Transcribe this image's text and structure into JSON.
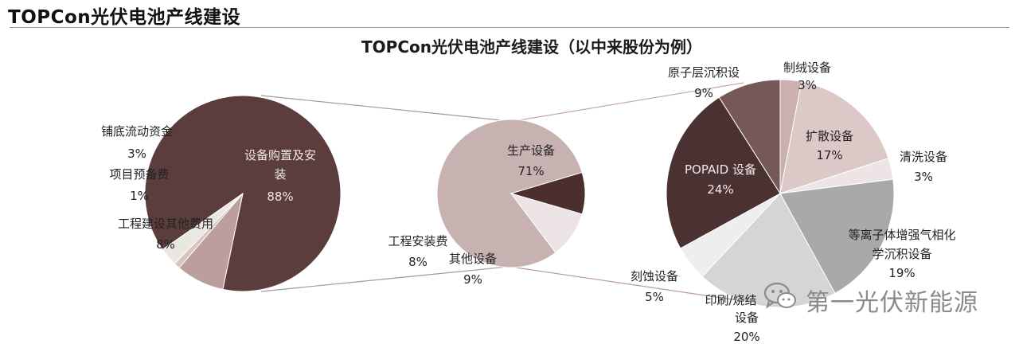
{
  "page_title": "TOPCon光伏电池产线建设",
  "watermark": "第一光伏新能源",
  "chart_data": [
    {
      "type": "pie",
      "role": "total-investment",
      "title": "TOPCon光伏电池产线建设（以中来股份为例）",
      "slices": [
        {
          "label": "设备购置及安装",
          "value": 88,
          "value_label": "88%",
          "color": "#5c3d3d"
        },
        {
          "label": "工程建设其他费用",
          "value": 8,
          "value_label": "8%",
          "color": "#bd9e9e"
        },
        {
          "label": "项目预备费",
          "value": 1,
          "value_label": "1%",
          "color": "#d9c3c3"
        },
        {
          "label": "铺底流动资金",
          "value": 3,
          "value_label": "3%",
          "color": "#eae7e1"
        }
      ]
    },
    {
      "type": "pie",
      "role": "equipment-breakdown",
      "slices": [
        {
          "label": "生产设备",
          "value": 71,
          "value_label": "71%",
          "color": "#c7b1b1"
        },
        {
          "label": "工程安装费",
          "value": 8,
          "value_label": "8%",
          "color": "#4b2f2f"
        },
        {
          "label": "其他设备",
          "value": 9,
          "value_label": "9%",
          "color": "#ece4e4"
        }
      ]
    },
    {
      "type": "pie",
      "role": "production-equipment",
      "slices": [
        {
          "label": "制绒设备",
          "value": 3,
          "value_label": "3%",
          "color": "#cbb0b0"
        },
        {
          "label": "扩散设备",
          "value": 17,
          "value_label": "17%",
          "color": "#ddc8c8"
        },
        {
          "label": "清洗设备",
          "value": 3,
          "value_label": "3%",
          "color": "#ede5e5"
        },
        {
          "label": "等离子体增强气相化学沉积设备",
          "value": 19,
          "value_label": "19%",
          "color": "#a9a9a9"
        },
        {
          "label": "印刷/烧结设备",
          "value": 20,
          "value_label": "20%",
          "color": "#d5d5d5"
        },
        {
          "label": "刻蚀设备",
          "value": 5,
          "value_label": "5%",
          "color": "#eeeeee"
        },
        {
          "label": "POPAID 设备",
          "value": 24,
          "value_label": "24%",
          "color": "#4b3232"
        },
        {
          "label": "原子层沉积设",
          "value": 9,
          "value_label": "9%",
          "color": "#775858"
        }
      ]
    }
  ]
}
